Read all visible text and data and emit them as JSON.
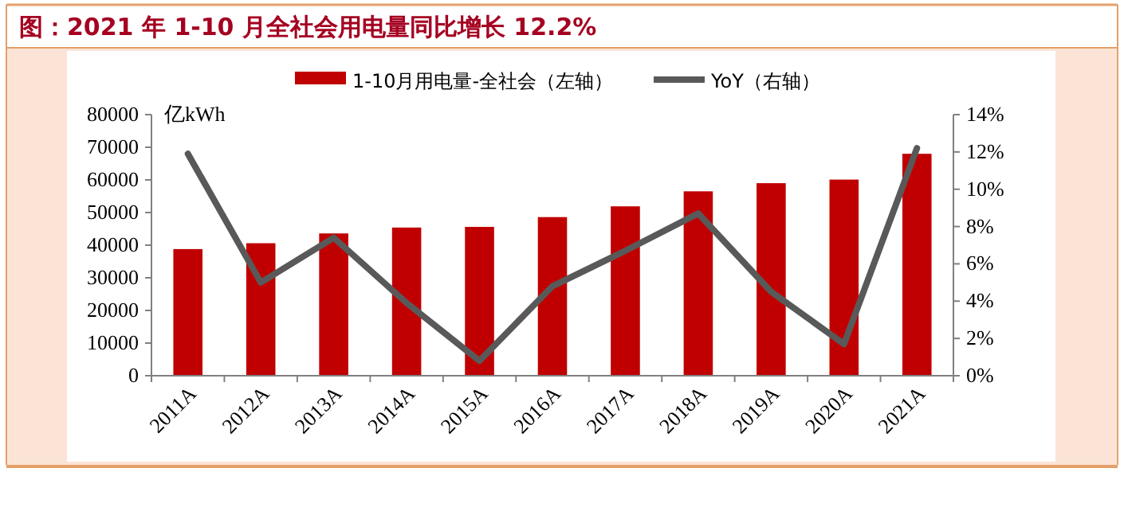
{
  "chart_data": {
    "type": "bar",
    "title": "图：2021 年 1-10 月全社会用电量同比增长 12.2%",
    "ylabel": "亿kWh",
    "categories": [
      "2011A",
      "2012A",
      "2013A",
      "2014A",
      "2015A",
      "2016A",
      "2017A",
      "2018A",
      "2019A",
      "2020A",
      "2021A"
    ],
    "series": [
      {
        "name": "1-10月用电量-全社会（左轴）",
        "color": "#c00000",
        "values": [
          38800,
          40600,
          43600,
          45400,
          45600,
          48600,
          51900,
          56500,
          59000,
          60100,
          68000
        ]
      },
      {
        "name": "YoY（右轴）",
        "type": "line",
        "axis": "y2",
        "color": "#595959",
        "values": [
          11.9,
          5.0,
          7.4,
          3.9,
          0.8,
          4.8,
          6.7,
          8.7,
          4.5,
          1.7,
          12.2
        ]
      }
    ],
    "ylim": [
      0,
      80000
    ],
    "yticks": [
      0,
      10000,
      20000,
      30000,
      40000,
      50000,
      60000,
      70000,
      80000
    ],
    "y2lim": [
      0,
      14
    ],
    "y2ticks": [
      {
        "value": 0,
        "label": "0%"
      },
      {
        "value": 2,
        "label": "2%"
      },
      {
        "value": 4,
        "label": "4%"
      },
      {
        "value": 6,
        "label": "6%"
      },
      {
        "value": 8,
        "label": "8%"
      },
      {
        "value": 10,
        "label": "10%"
      },
      {
        "value": 12,
        "label": "12%"
      },
      {
        "value": 14,
        "label": "14%"
      }
    ],
    "legend": "top",
    "grid": false,
    "marker": "none",
    "line_style": "solid"
  }
}
